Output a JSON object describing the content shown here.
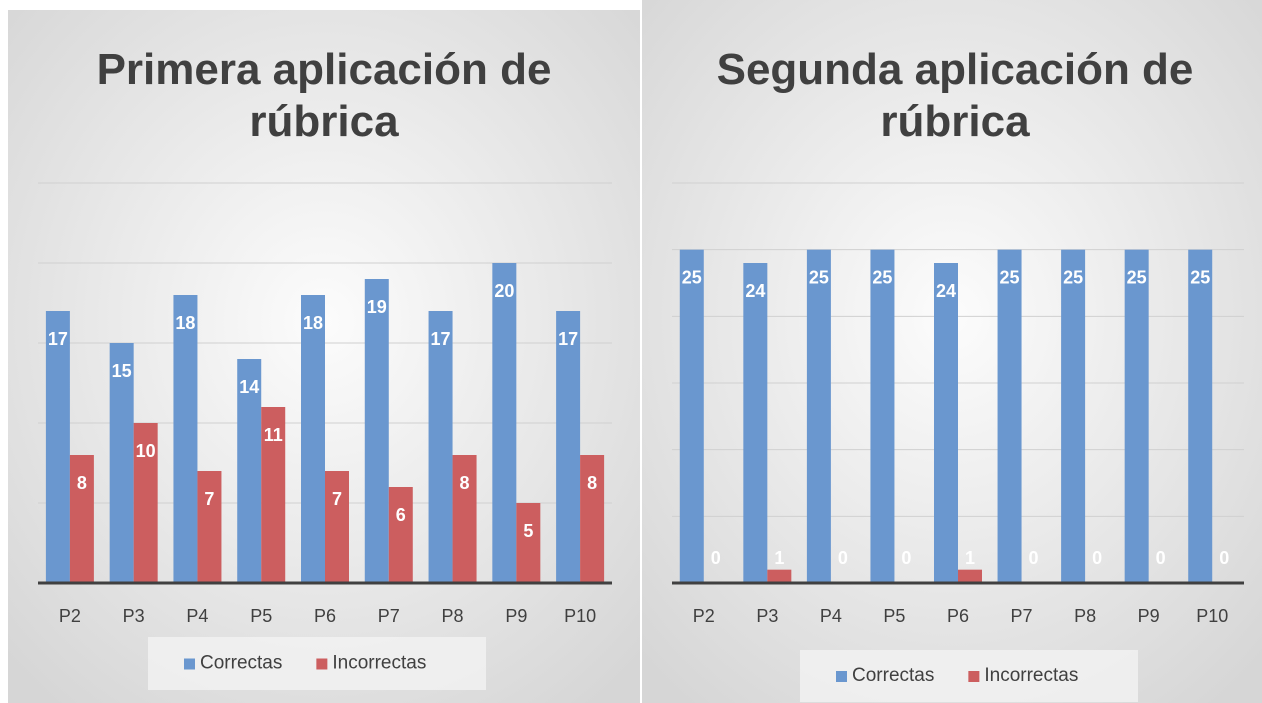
{
  "chart_data": [
    {
      "type": "bar",
      "title": "Primera aplicación de rúbrica",
      "categories": [
        "P2",
        "P3",
        "P4",
        "P5",
        "P6",
        "P7",
        "P8",
        "P9",
        "P10"
      ],
      "series": [
        {
          "name": "Correctas",
          "color": "#6a97cf",
          "values": [
            17,
            15,
            18,
            14,
            18,
            19,
            17,
            20,
            17
          ]
        },
        {
          "name": "Incorrectas",
          "color": "#cc5e5f",
          "values": [
            8,
            10,
            7,
            11,
            7,
            6,
            8,
            5,
            8
          ]
        }
      ],
      "ylim": [
        0,
        25
      ],
      "yticks": [
        0,
        5,
        10,
        15,
        20,
        25
      ],
      "grid": true,
      "legend": "bottom"
    },
    {
      "type": "bar",
      "title": "Segunda aplicación de rúbrica",
      "categories": [
        "P2",
        "P3",
        "P4",
        "P5",
        "P6",
        "P7",
        "P8",
        "P9",
        "P10"
      ],
      "series": [
        {
          "name": "Correctas",
          "color": "#6a97cf",
          "values": [
            25,
            24,
            25,
            25,
            24,
            25,
            25,
            25,
            25
          ]
        },
        {
          "name": "Incorrectas",
          "color": "#cc5e5f",
          "values": [
            0,
            1,
            0,
            0,
            1,
            0,
            0,
            0,
            0
          ]
        }
      ],
      "ylim": [
        0,
        30
      ],
      "yticks": [
        0,
        5,
        10,
        15,
        20,
        25,
        30
      ],
      "grid": true,
      "legend": "bottom"
    }
  ]
}
